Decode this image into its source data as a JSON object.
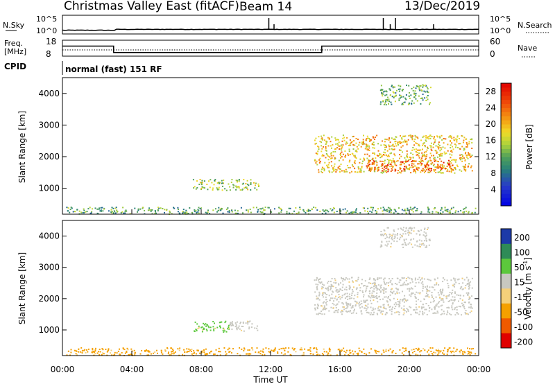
{
  "header": {
    "station": "Christmas Valley East (fitACF)",
    "beam": "Beam 14",
    "date": "13/Dec/2019"
  },
  "chart_data": [
    {
      "type": "line",
      "panel": "noise",
      "left_label": "N.Sky",
      "right_label": "N.Search",
      "left_ticks": [
        "10^5",
        "10^0"
      ],
      "right_ticks": [
        "10^5",
        "10^0"
      ],
      "scale": "log",
      "x_range_hours": [
        0,
        24
      ],
      "spikes_hours": [
        11.9,
        12.2,
        18.5,
        18.9,
        19.2,
        21.4
      ],
      "baseline_log10": 0.2
    },
    {
      "type": "line",
      "panel": "frequency",
      "left_label": "Freq.",
      "left_unit": "[MHz]",
      "right_label": "Nave",
      "left_ticks": [
        "18",
        "8"
      ],
      "right_ticks": [
        "60",
        "0"
      ],
      "ylim": [
        8,
        18
      ],
      "series": [
        {
          "x": [
            0,
            2.95,
            2.95,
            14.95,
            14.95,
            24
          ],
          "values": [
            14.3,
            14.3,
            10.3,
            10.3,
            14.3,
            14.3
          ]
        }
      ]
    },
    {
      "type": "table",
      "panel": "cpid",
      "label": "CPID",
      "program": "normal (fast) 151 RF"
    },
    {
      "type": "heatmap",
      "panel": "power",
      "ylabel": "Slant Range [km]",
      "y_ticks": [
        "1000",
        "2000",
        "3000",
        "4000"
      ],
      "ylim": [
        180,
        4500
      ],
      "x_range_hours": [
        0,
        24
      ],
      "colorbar": {
        "label": "Power [dB]",
        "ticks": [
          "4",
          "8",
          "12",
          "16",
          "20",
          "24",
          "28"
        ],
        "range": [
          0,
          30
        ]
      },
      "regions": [
        {
          "x": [
            0.2,
            23.8
          ],
          "y": [
            200,
            420
          ],
          "value": 12
        },
        {
          "x": [
            7.5,
            11.3
          ],
          "y": [
            950,
            1300
          ],
          "value": 15
        },
        {
          "x": [
            14.5,
            23.6
          ],
          "y": [
            1500,
            2700
          ],
          "value": 19
        },
        {
          "x": [
            17.5,
            22.5
          ],
          "y": [
            1550,
            1900
          ],
          "value": 25
        },
        {
          "x": [
            18.3,
            21.2
          ],
          "y": [
            3650,
            4300
          ],
          "value": 12
        }
      ]
    },
    {
      "type": "heatmap",
      "panel": "velocity",
      "ylabel": "Slant Range [km]",
      "y_ticks": [
        "1000",
        "2000",
        "3000",
        "4000"
      ],
      "ylim": [
        180,
        4500
      ],
      "x_range_hours": [
        0,
        24
      ],
      "xlabel": "Time UT",
      "x_ticks": [
        "00:00",
        "04:00",
        "08:00",
        "12:00",
        "16:00",
        "20:00",
        "00:00"
      ],
      "colorbar": {
        "label": "Velocity [m s^-1]",
        "ticks": [
          "200",
          "100",
          "50",
          "15",
          "-15",
          "-50",
          "-100",
          "-200"
        ],
        "categories": [
          {
            "name": "-200",
            "color": "#e00000"
          },
          {
            "name": "-100",
            "color": "#f05a00"
          },
          {
            "name": "-50",
            "color": "#f5a000"
          },
          {
            "name": "-15",
            "color": "#f5d07a"
          },
          {
            "name": "15",
            "color": "#c8c8c0"
          },
          {
            "name": "50",
            "color": "#5cc83c"
          },
          {
            "name": "100",
            "color": "#2e8b57"
          },
          {
            "name": "200",
            "color": "#1c3aa8"
          }
        ]
      },
      "regions": [
        {
          "x": [
            0.2,
            23.8
          ],
          "y": [
            200,
            450
          ],
          "value": "-50"
        },
        {
          "x": [
            7.5,
            9.6
          ],
          "y": [
            950,
            1300
          ],
          "value": "50"
        },
        {
          "x": [
            9.6,
            11.3
          ],
          "y": [
            950,
            1300
          ],
          "value": "15"
        },
        {
          "x": [
            14.5,
            23.6
          ],
          "y": [
            1500,
            2700
          ],
          "value": "15"
        },
        {
          "x": [
            18.3,
            21.2
          ],
          "y": [
            3650,
            4300
          ],
          "value": "15"
        }
      ]
    }
  ]
}
